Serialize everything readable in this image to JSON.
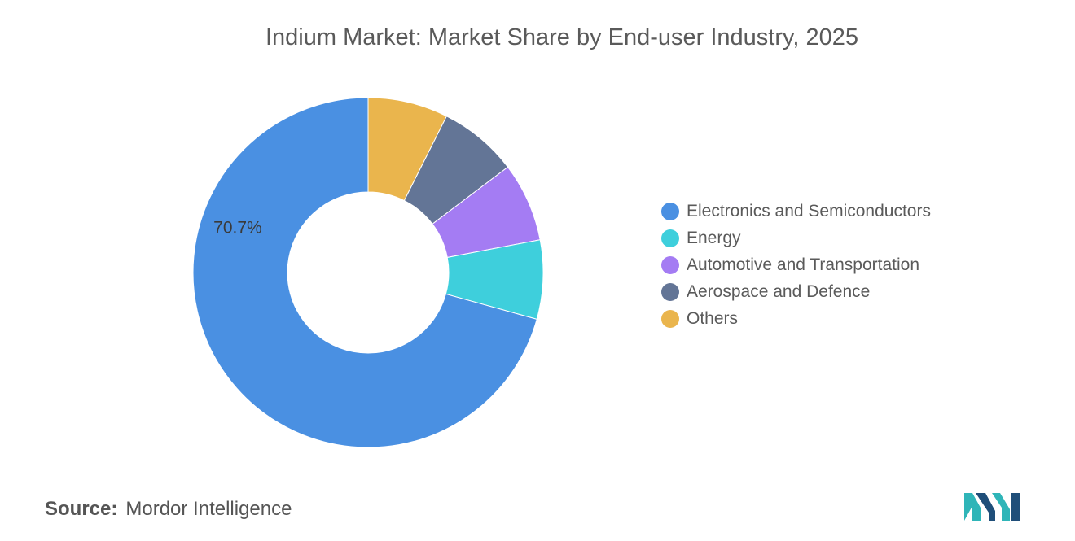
{
  "title": "Indium Market: Market Share by End-user Industry, 2025",
  "source": {
    "label": "Source:",
    "value": "Mordor Intelligence"
  },
  "logo": {
    "name": "mordor-intelligence-logo",
    "colors": [
      "#2fb5b8",
      "#1f4e79"
    ]
  },
  "chart_data": {
    "type": "pie",
    "donut": true,
    "title": "Indium Market: Market Share by End-user Industry, 2025",
    "legend_position": "right",
    "slices": [
      {
        "name": "Electronics and Semiconductors",
        "value": 70.7,
        "label": "70.7%",
        "color": "#4a90e2"
      },
      {
        "name": "Energy",
        "value": 7.3,
        "label": "",
        "color": "#3ecfdc"
      },
      {
        "name": "Automotive and Transportation",
        "value": 7.3,
        "label": "",
        "color": "#a47cf3"
      },
      {
        "name": "Aerospace and Defence",
        "value": 7.3,
        "label": "",
        "color": "#637596"
      },
      {
        "name": "Others",
        "value": 7.4,
        "label": "",
        "color": "#eab54d"
      }
    ]
  }
}
